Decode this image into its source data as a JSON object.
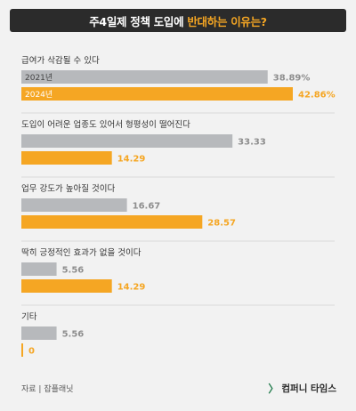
{
  "header": {
    "title_prefix": "주4일제 정책 도입에",
    "title_highlight": "반대하는 이유는?"
  },
  "footer": {
    "source": "자료 | 잡플래닛",
    "brand": "컴퍼니 타임스"
  },
  "colors": {
    "series_2021": "#b7b9bc",
    "series_2024": "#f5a623",
    "value_2021": "#8e8e8e",
    "value_2024": "#f5a623"
  },
  "chart_data": {
    "type": "bar",
    "orientation": "horizontal",
    "categories": [
      "급여가 삭감될 수 있다",
      "도입이 어려운 업종도 있어서 형평성이 떨어진다",
      "업무 강도가 높아질 것이다",
      "딱히 긍정적인 효과가 없을 것이다",
      "기타"
    ],
    "series": [
      {
        "name": "2021년",
        "values": [
          38.89,
          33.33,
          16.67,
          5.56,
          5.56
        ],
        "labels": [
          "38.89%",
          "33.33",
          "16.67",
          "5.56",
          "5.56"
        ]
      },
      {
        "name": "2024년",
        "values": [
          42.86,
          14.29,
          28.57,
          14.29,
          0
        ],
        "labels": [
          "42.86%",
          "14.29",
          "28.57",
          "14.29",
          "0"
        ]
      }
    ],
    "xlim": [
      0,
      42.86
    ]
  }
}
